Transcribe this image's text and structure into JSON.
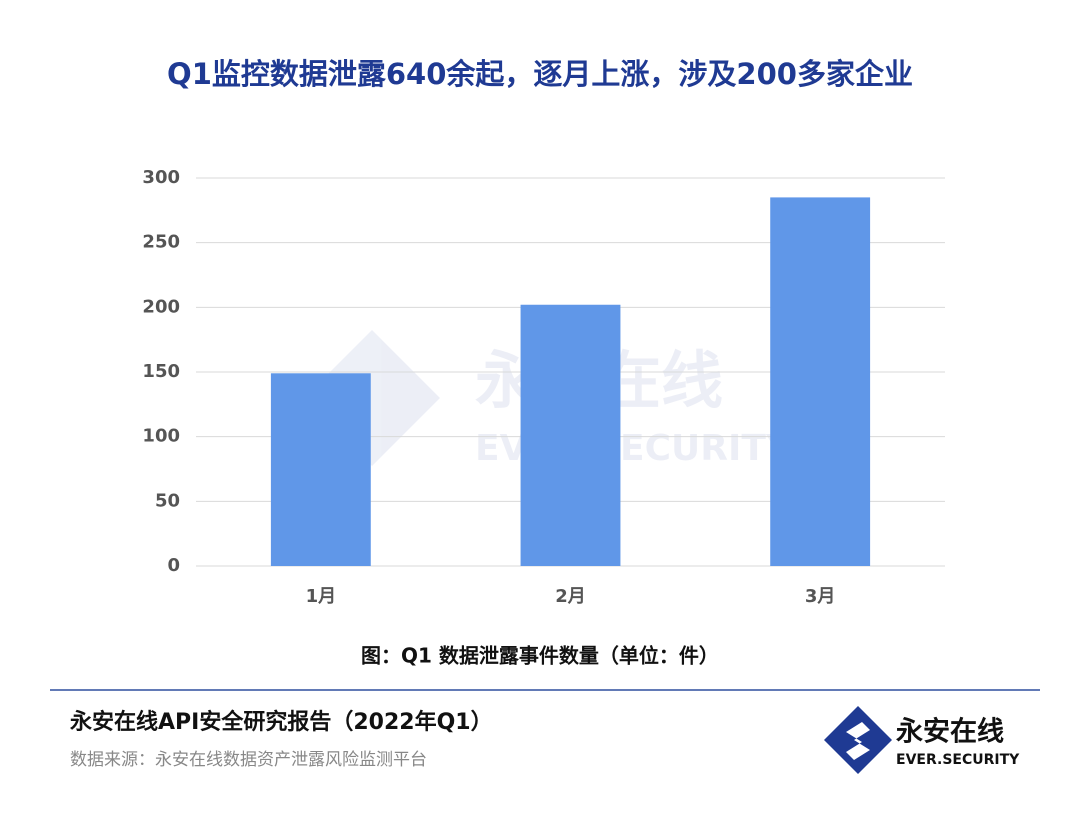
{
  "chart_data": {
    "type": "bar",
    "title": "Q1监控数据泄露640余起，逐月上涨，涉及200多家企业",
    "caption": "图：Q1 数据泄露事件数量（单位：件）",
    "categories": [
      "1月",
      "2月",
      "3月"
    ],
    "values": [
      149,
      202,
      285
    ],
    "color": "#6097e8",
    "ylim": [
      0,
      300
    ],
    "yticks": [
      0,
      50,
      100,
      150,
      200,
      250,
      300
    ],
    "grid": true
  },
  "watermark": {
    "name": "永安在线",
    "tagline": "EVER.SECURITY"
  },
  "footer": {
    "report_title": "永安在线API安全研究报告（2022年Q1）",
    "source": "数据来源：永安在线数据资产泄露风险监测平台"
  },
  "logo": {
    "name": "永安在线",
    "tagline": "EVER.SECURITY"
  }
}
